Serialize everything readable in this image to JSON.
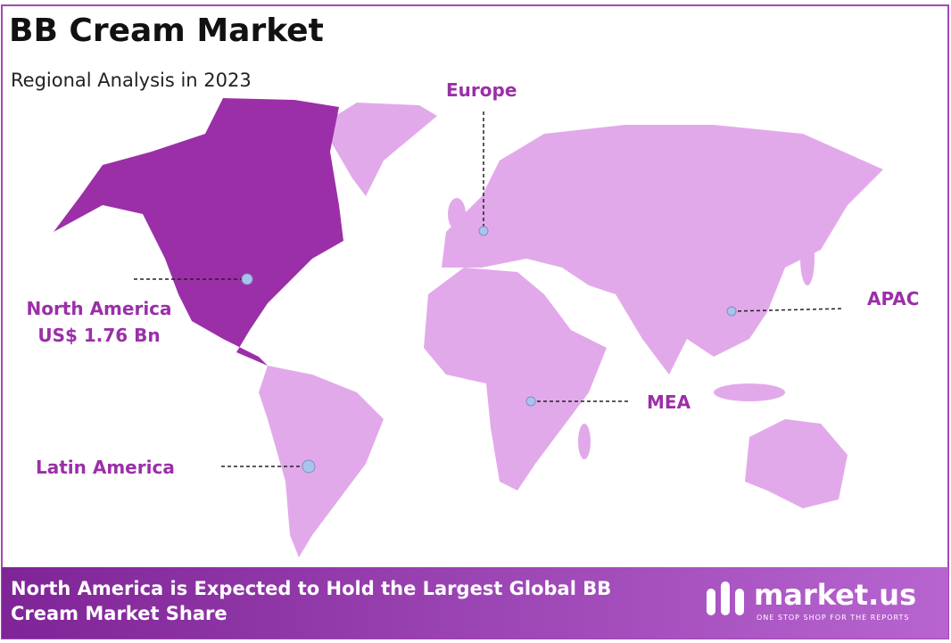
{
  "header": {
    "title": "BB Cream Market",
    "subtitle": "Regional Analysis in 2023"
  },
  "regions": [
    {
      "label": "Europe"
    },
    {
      "label": "North America",
      "value": "US$ 1.76 Bn"
    },
    {
      "label": "APAC"
    },
    {
      "label": "MEA"
    },
    {
      "label": "Latin America"
    }
  ],
  "footer": {
    "text": "North America is Expected to Hold the Largest Global BB Cream Market Share"
  },
  "logo": {
    "name": "market.us",
    "tagline": "ONE STOP SHOP FOR THE REPORTS"
  }
}
